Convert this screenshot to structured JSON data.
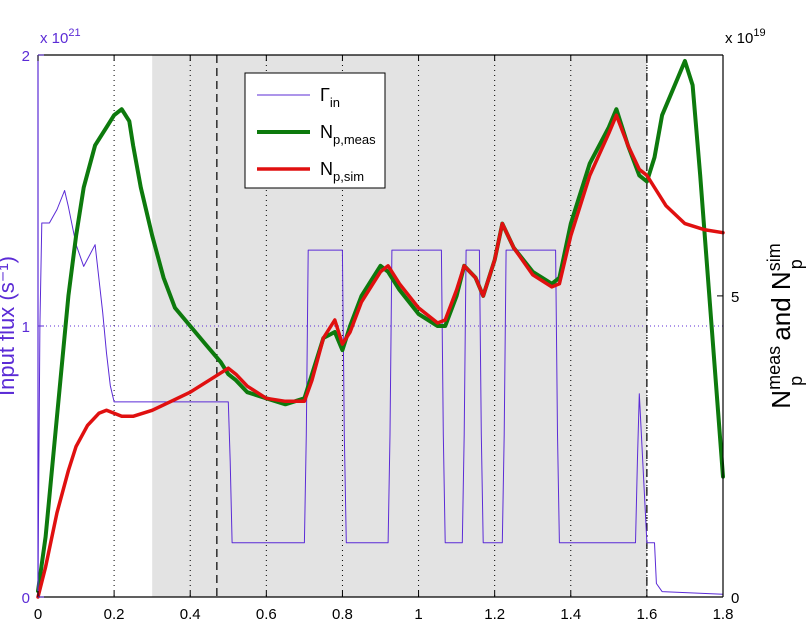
{
  "chart_data": {
    "type": "line",
    "title": "",
    "xlabel": "",
    "x_range": [
      0,
      1.8
    ],
    "x_ticks": [
      "0",
      "0.2",
      "0.4",
      "0.6",
      "0.8",
      "1",
      "1.2",
      "1.4",
      "1.6",
      "1.8"
    ],
    "x_tick_values": [
      0,
      0.2,
      0.4,
      0.6,
      0.8,
      1.0,
      1.2,
      1.4,
      1.6,
      1.8
    ],
    "left_axis": {
      "label": "Input flux (s⁻¹)",
      "range": [
        0,
        2
      ],
      "ticks": [
        "0",
        "1",
        "2"
      ],
      "tick_values": [
        0,
        1,
        2
      ],
      "multiplier": "x 10",
      "multiplier_exp": "21",
      "color": "#5b2bd6"
    },
    "right_axis": {
      "label_main_1": "N",
      "label_sup_1": "meas",
      "label_sub_1": "p",
      "label_and": " and N",
      "label_sup_2": "sim",
      "label_sub_2": "p",
      "range": [
        0,
        9
      ],
      "ticks": [
        "0",
        "5"
      ],
      "tick_values": [
        0,
        5
      ],
      "multiplier": "x 10",
      "multiplier_exp": "19",
      "color": "#000000"
    },
    "shaded_region": {
      "x_start": 0.3,
      "x_end": 1.6,
      "color": "#e3e3e3"
    },
    "vertical_lines": [
      {
        "x": 0.47,
        "style": "dashed"
      },
      {
        "x": 1.6,
        "style": "dashdot"
      }
    ],
    "horizontal_reference": {
      "y": 1.0,
      "axis": "left",
      "style": "dotted",
      "color": "#5b2bd6"
    },
    "grid": "vertical-dotted",
    "legend": {
      "placement": "top-center",
      "entries": [
        {
          "name": "Γ",
          "sub": "in",
          "color": "#5b2bd6"
        },
        {
          "name": "N",
          "sub": "p,meas",
          "color": "#0d7a0d"
        },
        {
          "name": "N",
          "sub": "p,sim",
          "color": "#e01010"
        }
      ]
    },
    "series": [
      {
        "name": "Γin",
        "axis": "left",
        "color": "#5b2bd6",
        "width": 1,
        "x": [
          0,
          0.005,
          0.01,
          0.03,
          0.05,
          0.07,
          0.08,
          0.1,
          0.12,
          0.15,
          0.17,
          0.18,
          0.19,
          0.2,
          0.21,
          0.22,
          0.25,
          0.3,
          0.35,
          0.4,
          0.45,
          0.5,
          0.505,
          0.51,
          0.52,
          0.6,
          0.7,
          0.705,
          0.71,
          0.75,
          0.8,
          0.805,
          0.81,
          0.9,
          0.92,
          0.925,
          0.93,
          1.06,
          1.065,
          1.07,
          1.1,
          1.115,
          1.12,
          1.125,
          1.16,
          1.165,
          1.17,
          1.175,
          1.22,
          1.225,
          1.23,
          1.36,
          1.365,
          1.37,
          1.5,
          1.57,
          1.575,
          1.58,
          1.6,
          1.605,
          1.61,
          1.615,
          1.62,
          1.625,
          1.64,
          1.8
        ],
        "y": [
          0.05,
          1.0,
          1.38,
          1.38,
          1.43,
          1.5,
          1.44,
          1.3,
          1.22,
          1.3,
          1.05,
          0.9,
          0.78,
          0.72,
          0.72,
          0.72,
          0.72,
          0.72,
          0.72,
          0.72,
          0.72,
          0.72,
          0.5,
          0.2,
          0.2,
          0.2,
          0.2,
          0.6,
          1.28,
          1.28,
          1.28,
          0.6,
          0.2,
          0.2,
          0.2,
          0.6,
          1.28,
          1.28,
          0.6,
          0.2,
          0.2,
          0.2,
          0.6,
          1.28,
          1.28,
          0.6,
          0.2,
          0.2,
          0.2,
          0.6,
          1.28,
          1.28,
          0.6,
          0.2,
          0.2,
          0.2,
          0.5,
          0.75,
          0.2,
          0.2,
          0.2,
          0.2,
          0.2,
          0.05,
          0.02,
          0.01
        ]
      },
      {
        "name": "Np,meas",
        "axis": "right",
        "color": "#0d7a0d",
        "width": 4,
        "x": [
          0.0,
          0.02,
          0.05,
          0.08,
          0.1,
          0.12,
          0.15,
          0.18,
          0.2,
          0.22,
          0.24,
          0.25,
          0.27,
          0.3,
          0.33,
          0.36,
          0.4,
          0.44,
          0.48,
          0.5,
          0.52,
          0.55,
          0.6,
          0.65,
          0.7,
          0.72,
          0.75,
          0.78,
          0.8,
          0.82,
          0.85,
          0.88,
          0.9,
          0.92,
          0.95,
          1.0,
          1.05,
          1.07,
          1.1,
          1.12,
          1.15,
          1.17,
          1.2,
          1.22,
          1.25,
          1.3,
          1.35,
          1.37,
          1.4,
          1.45,
          1.5,
          1.52,
          1.55,
          1.58,
          1.6,
          1.62,
          1.64,
          1.66,
          1.68,
          1.7,
          1.72,
          1.74,
          1.77,
          1.8
        ],
        "y": [
          0.1,
          1.0,
          3.0,
          5.0,
          6.0,
          6.8,
          7.5,
          7.8,
          8.0,
          8.1,
          7.9,
          7.5,
          6.8,
          6.0,
          5.3,
          4.8,
          4.5,
          4.2,
          3.9,
          3.7,
          3.6,
          3.4,
          3.3,
          3.2,
          3.3,
          3.7,
          4.3,
          4.4,
          4.1,
          4.5,
          5.0,
          5.3,
          5.5,
          5.4,
          5.1,
          4.7,
          4.5,
          4.5,
          5.0,
          5.5,
          5.3,
          5.0,
          5.6,
          6.2,
          5.8,
          5.4,
          5.2,
          5.3,
          6.2,
          7.2,
          7.8,
          8.1,
          7.5,
          7.0,
          6.9,
          7.3,
          8.0,
          8.3,
          8.6,
          8.9,
          8.5,
          7.0,
          4.5,
          2.0
        ]
      },
      {
        "name": "Np,sim",
        "axis": "right",
        "color": "#e01010",
        "width": 3.5,
        "x": [
          0.0,
          0.02,
          0.05,
          0.08,
          0.1,
          0.13,
          0.16,
          0.18,
          0.2,
          0.22,
          0.25,
          0.3,
          0.35,
          0.4,
          0.45,
          0.5,
          0.52,
          0.55,
          0.6,
          0.65,
          0.7,
          0.72,
          0.75,
          0.78,
          0.8,
          0.82,
          0.85,
          0.88,
          0.9,
          0.92,
          0.95,
          1.0,
          1.05,
          1.07,
          1.1,
          1.12,
          1.15,
          1.17,
          1.2,
          1.22,
          1.25,
          1.3,
          1.35,
          1.37,
          1.4,
          1.45,
          1.5,
          1.52,
          1.55,
          1.58,
          1.6,
          1.62,
          1.65,
          1.7,
          1.75,
          1.8
        ],
        "y": [
          0.0,
          0.5,
          1.4,
          2.1,
          2.5,
          2.85,
          3.05,
          3.1,
          3.05,
          3.0,
          3.0,
          3.1,
          3.25,
          3.4,
          3.6,
          3.8,
          3.7,
          3.5,
          3.3,
          3.25,
          3.25,
          3.6,
          4.3,
          4.6,
          4.2,
          4.4,
          4.9,
          5.2,
          5.4,
          5.5,
          5.2,
          4.8,
          4.55,
          4.6,
          5.1,
          5.5,
          5.3,
          5.0,
          5.6,
          6.2,
          5.8,
          5.35,
          5.15,
          5.2,
          6.0,
          7.0,
          7.7,
          8.0,
          7.5,
          7.1,
          7.0,
          6.8,
          6.5,
          6.2,
          6.1,
          6.05
        ]
      }
    ]
  }
}
